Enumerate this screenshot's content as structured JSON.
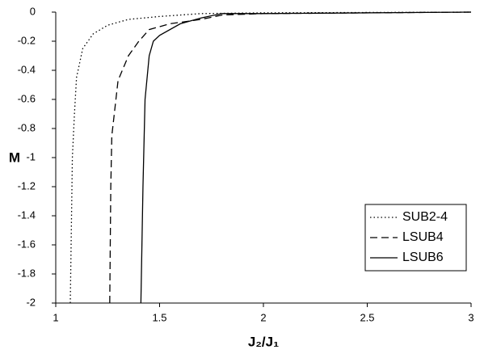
{
  "chart_data": {
    "type": "line",
    "x_label": "J₂/J₁",
    "y_label": "M",
    "xlim": [
      1,
      3
    ],
    "xticks": [
      1,
      1.5,
      2,
      2.5,
      3
    ],
    "ylim": [
      -2,
      0
    ],
    "yticks": [
      0,
      -0.2,
      -0.4,
      -0.6,
      -0.8,
      -1,
      -1.2,
      -1.4,
      -1.6,
      -1.8,
      -2
    ],
    "legend": "lower right",
    "series": [
      {
        "name": "SUB2-4",
        "color": "#000000",
        "dash": "dotted",
        "x": [
          1.07,
          1.08,
          1.09,
          1.1,
          1.13,
          1.18,
          1.25,
          1.35,
          1.5,
          1.7,
          2,
          3
        ],
        "values": [
          -2,
          -1.0,
          -0.7,
          -0.45,
          -0.25,
          -0.15,
          -0.09,
          -0.05,
          -0.03,
          -0.01,
          -0.005,
          0
        ]
      },
      {
        "name": "LSUB4",
        "color": "#000000",
        "dash": "dashed",
        "x": [
          1.26,
          1.265,
          1.27,
          1.3,
          1.35,
          1.4,
          1.45,
          1.55,
          1.7,
          1.8,
          2,
          3
        ],
        "values": [
          -2,
          -1.2,
          -0.85,
          -0.47,
          -0.3,
          -0.2,
          -0.12,
          -0.08,
          -0.05,
          -0.02,
          -0.01,
          0
        ]
      },
      {
        "name": "LSUB6",
        "color": "#000000",
        "dash": "solid",
        "x": [
          1.41,
          1.42,
          1.43,
          1.45,
          1.47,
          1.5,
          1.6,
          1.7,
          1.8,
          2,
          3
        ],
        "values": [
          -2,
          -1.2,
          -0.6,
          -0.3,
          -0.2,
          -0.16,
          -0.08,
          -0.04,
          -0.01,
          -0.01,
          0
        ]
      }
    ]
  }
}
